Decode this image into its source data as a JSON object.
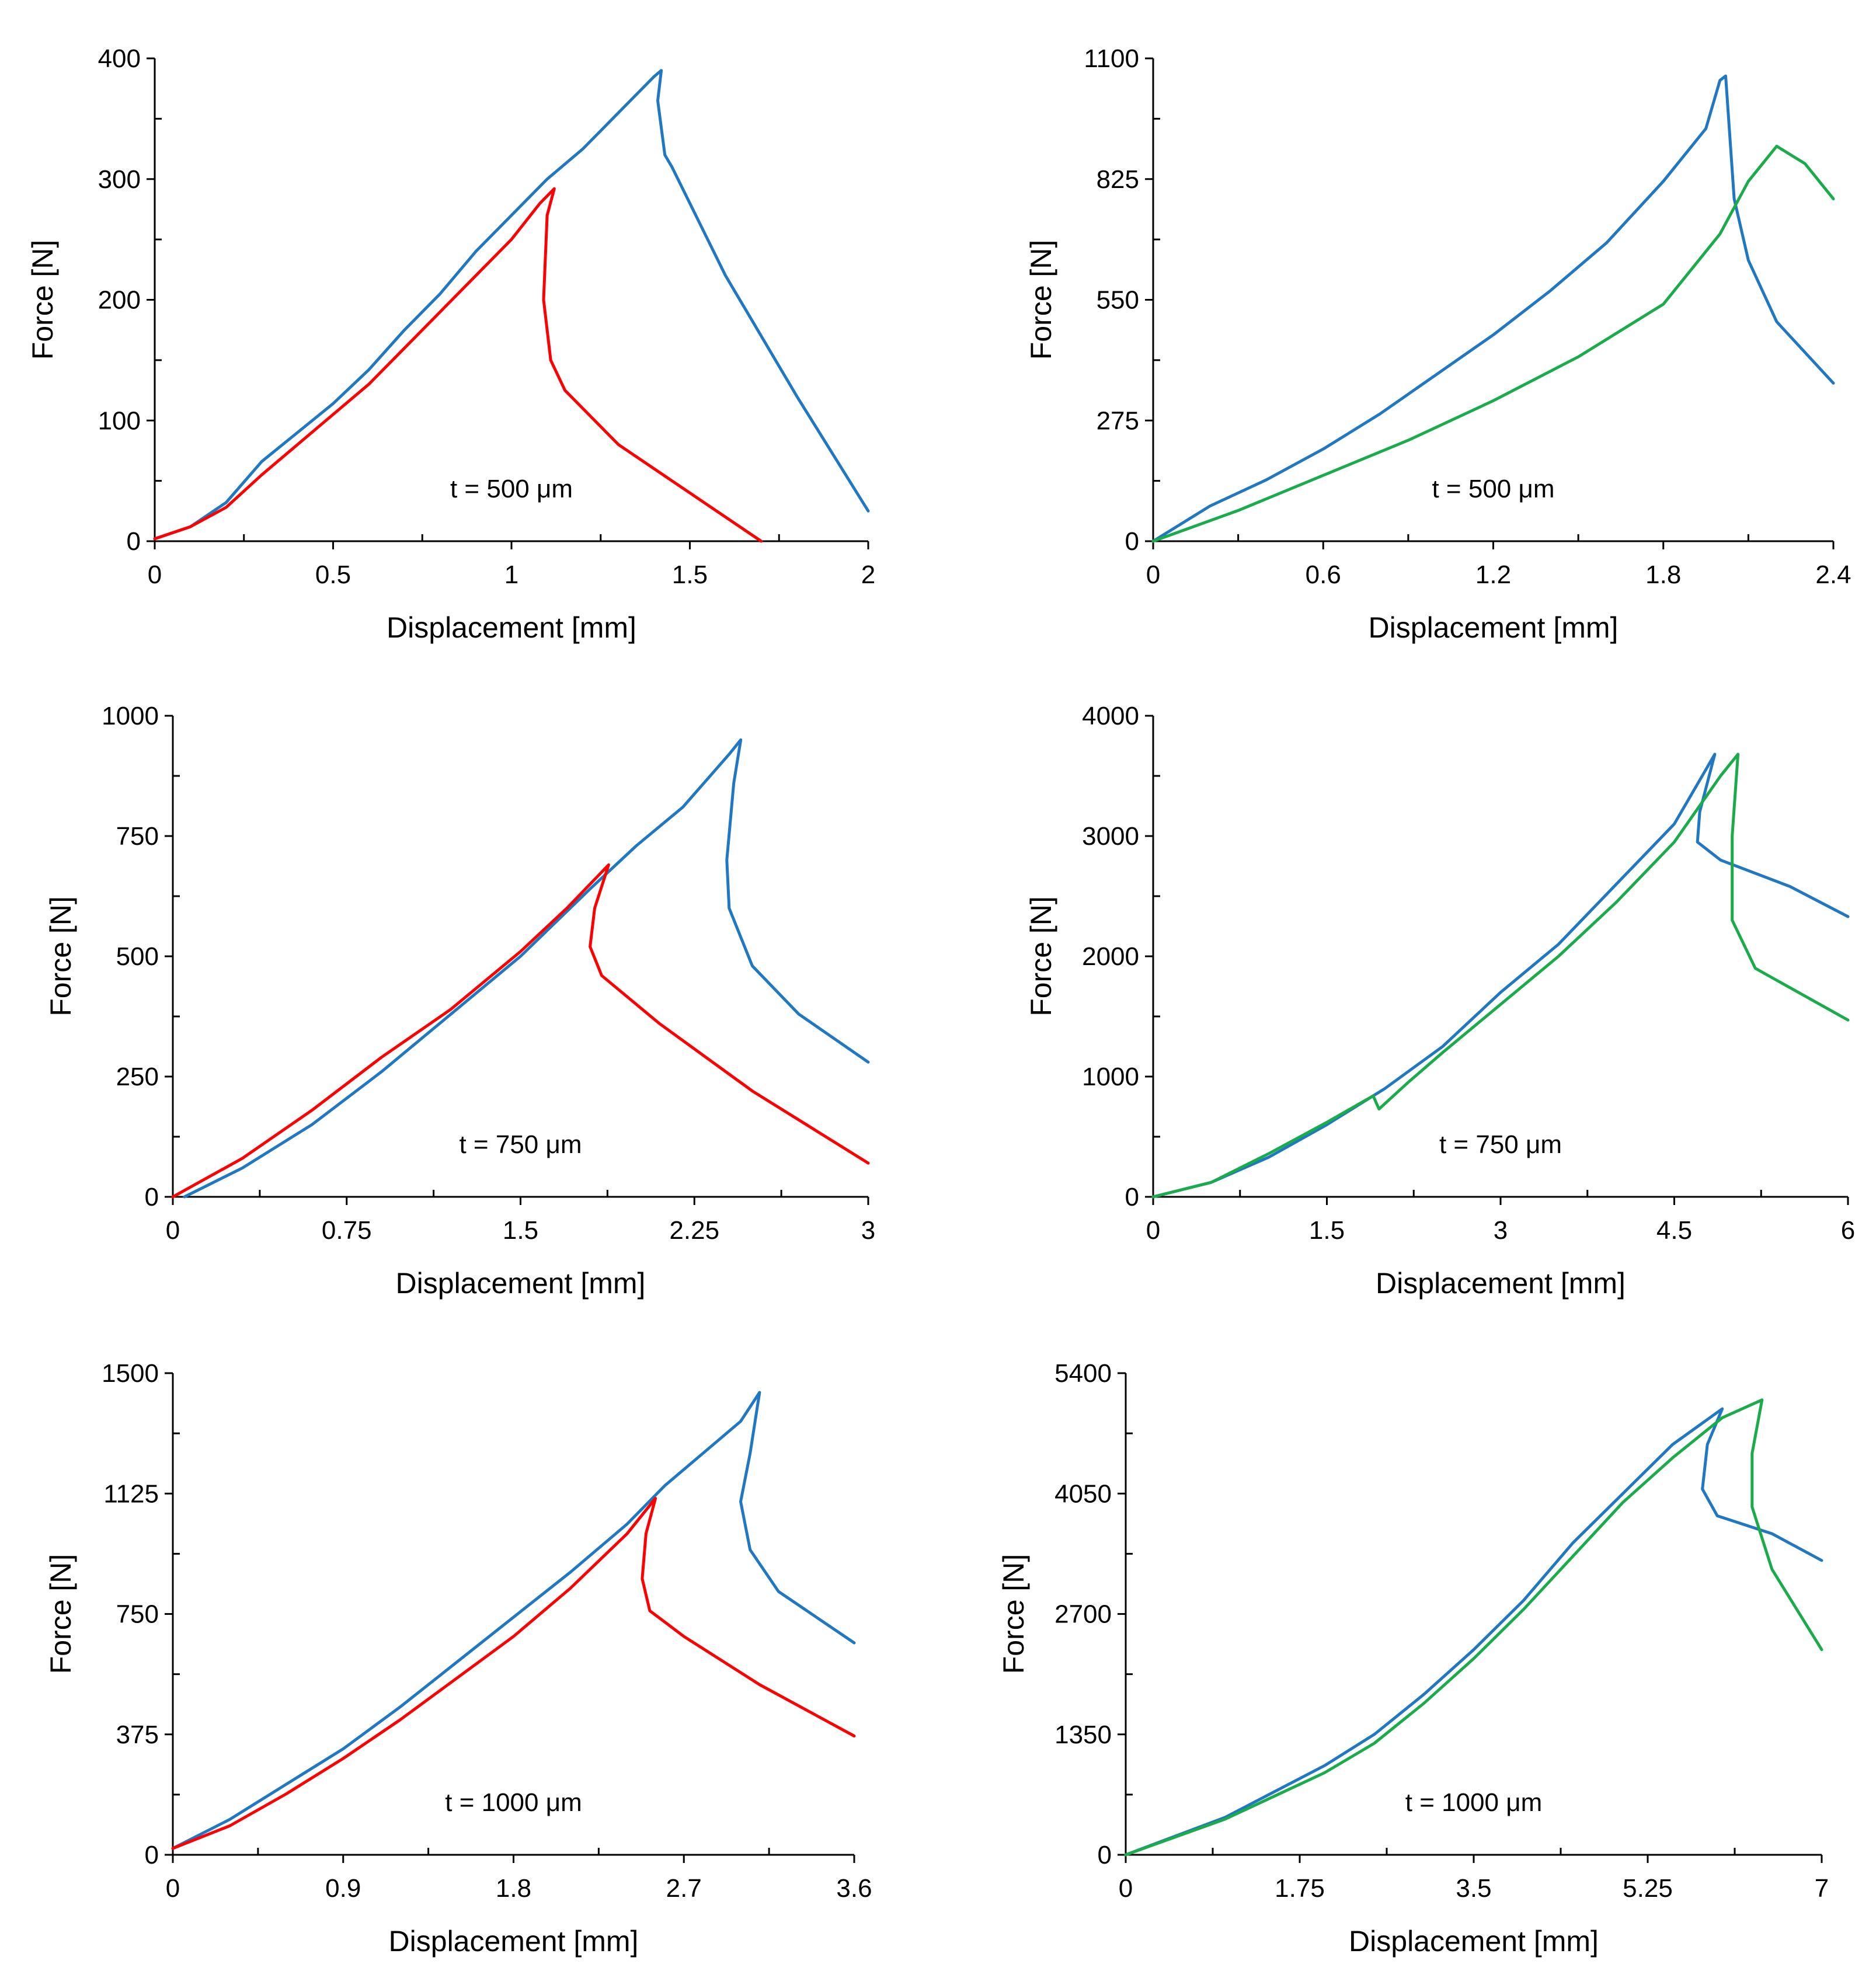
{
  "chart_data": [
    {
      "type": "line",
      "xlabel": "Displacement [mm]",
      "ylabel": "Force [N]",
      "annotation": "t = 500 μm",
      "xlim": [
        0,
        2
      ],
      "ylim": [
        0,
        400
      ],
      "xticks": [
        "0",
        "0.5",
        "1",
        "1.5",
        "2"
      ],
      "yticks": [
        "0",
        "100",
        "200",
        "300",
        "400"
      ],
      "series": [
        {
          "name": "blue",
          "color": "#1f78c1",
          "x": [
            0,
            0.1,
            0.2,
            0.3,
            0.4,
            0.5,
            0.6,
            0.7,
            0.8,
            0.9,
            1.0,
            1.1,
            1.2,
            1.3,
            1.35,
            1.4,
            1.42,
            1.41,
            1.43,
            1.45,
            1.6,
            1.8,
            2.0
          ],
          "y": [
            2,
            12,
            32,
            66,
            90,
            114,
            142,
            175,
            205,
            240,
            270,
            300,
            325,
            355,
            370,
            385,
            390,
            365,
            320,
            310,
            220,
            120,
            25
          ]
        },
        {
          "name": "red",
          "color": "#ff0000",
          "x": [
            0,
            0.1,
            0.2,
            0.3,
            0.4,
            0.5,
            0.6,
            0.7,
            0.8,
            0.9,
            1.0,
            1.08,
            1.12,
            1.1,
            1.09,
            1.11,
            1.15,
            1.3,
            1.5,
            1.7
          ],
          "y": [
            2,
            12,
            28,
            55,
            80,
            105,
            130,
            160,
            190,
            220,
            250,
            280,
            292,
            270,
            200,
            150,
            125,
            80,
            40,
            0
          ]
        }
      ]
    },
    {
      "type": "line",
      "xlabel": "Displacement [mm]",
      "ylabel": "Force [N]",
      "annotation": "t = 500 μm",
      "xlim": [
        0,
        2.4
      ],
      "ylim": [
        0,
        1100
      ],
      "xticks": [
        "0",
        "0.6",
        "1.2",
        "1.8",
        "2.4"
      ],
      "yticks": [
        "0",
        "275",
        "550",
        "825",
        "1100"
      ],
      "series": [
        {
          "name": "blue",
          "color": "#1f78c1",
          "x": [
            0,
            0.2,
            0.4,
            0.6,
            0.8,
            1.0,
            1.2,
            1.4,
            1.6,
            1.8,
            1.95,
            2.0,
            2.02,
            2.05,
            2.1,
            2.2,
            2.4
          ],
          "y": [
            0,
            80,
            140,
            210,
            290,
            380,
            470,
            570,
            680,
            820,
            940,
            1050,
            1060,
            780,
            640,
            500,
            360
          ]
        },
        {
          "name": "green",
          "color": "#1aac4a",
          "x": [
            0,
            0.3,
            0.6,
            0.9,
            1.2,
            1.5,
            1.8,
            2.0,
            2.1,
            2.2,
            2.3,
            2.4
          ],
          "y": [
            0,
            70,
            150,
            230,
            320,
            420,
            540,
            700,
            820,
            900,
            860,
            780
          ]
        }
      ]
    },
    {
      "type": "line",
      "xlabel": "Displacement [mm]",
      "ylabel": "Force [N]",
      "annotation": "t = 750 μm",
      "xlim": [
        0,
        3
      ],
      "ylim": [
        0,
        1000
      ],
      "xticks": [
        "0",
        "0.75",
        "1.5",
        "2.25",
        "3"
      ],
      "yticks": [
        "0",
        "250",
        "500",
        "750",
        "1000"
      ],
      "series": [
        {
          "name": "blue",
          "color": "#1f78c1",
          "x": [
            0.05,
            0.3,
            0.6,
            0.9,
            1.2,
            1.5,
            1.8,
            2.0,
            2.2,
            2.4,
            2.45,
            2.42,
            2.39,
            2.4,
            2.5,
            2.7,
            3.0
          ],
          "y": [
            0,
            60,
            150,
            260,
            380,
            500,
            640,
            730,
            810,
            920,
            950,
            860,
            700,
            600,
            480,
            380,
            280
          ]
        },
        {
          "name": "red",
          "color": "#ff0000",
          "x": [
            0,
            0.3,
            0.6,
            0.9,
            1.2,
            1.5,
            1.7,
            1.88,
            1.82,
            1.8,
            1.85,
            2.1,
            2.5,
            3.0
          ],
          "y": [
            0,
            80,
            180,
            290,
            390,
            510,
            600,
            690,
            600,
            520,
            460,
            360,
            220,
            70
          ]
        }
      ]
    },
    {
      "type": "line",
      "xlabel": "Displacement [mm]",
      "ylabel": "Force [N]",
      "annotation": "t = 750 μm",
      "xlim": [
        0,
        6
      ],
      "ylim": [
        0,
        4000
      ],
      "xticks": [
        "0",
        "1.5",
        "3",
        "4.5",
        "6"
      ],
      "yticks": [
        "0",
        "1000",
        "2000",
        "3000",
        "4000"
      ],
      "series": [
        {
          "name": "blue",
          "color": "#1f78c1",
          "x": [
            0,
            0.5,
            1.0,
            1.5,
            2.0,
            2.5,
            3.0,
            3.5,
            4.0,
            4.5,
            4.85,
            4.72,
            4.7,
            4.9,
            5.5,
            6.0
          ],
          "y": [
            0,
            120,
            330,
            600,
            900,
            1250,
            1700,
            2100,
            2600,
            3100,
            3680,
            3200,
            2950,
            2800,
            2580,
            2330
          ]
        },
        {
          "name": "green",
          "color": "#1aac4a",
          "x": [
            0,
            0.5,
            1.0,
            1.5,
            1.9,
            1.95,
            2.2,
            2.5,
            3.0,
            3.5,
            4.0,
            4.5,
            4.9,
            5.05,
            5.0,
            5.0,
            5.2,
            6.0
          ],
          "y": [
            0,
            120,
            360,
            620,
            840,
            730,
            950,
            1200,
            1600,
            2000,
            2450,
            2950,
            3500,
            3680,
            3000,
            2300,
            1900,
            1470
          ]
        }
      ]
    },
    {
      "type": "line",
      "xlabel": "Displacement [mm]",
      "ylabel": "Force [N]",
      "annotation": "t = 1000 μm",
      "xlim": [
        0,
        3.6
      ],
      "ylim": [
        0,
        1500
      ],
      "xticks": [
        "0",
        "0.9",
        "1.8",
        "2.7",
        "3.6"
      ],
      "yticks": [
        "0",
        "375",
        "750",
        "1125",
        "1500"
      ],
      "series": [
        {
          "name": "blue",
          "color": "#1f78c1",
          "x": [
            0,
            0.3,
            0.6,
            0.9,
            1.2,
            1.5,
            1.8,
            2.1,
            2.4,
            2.6,
            2.8,
            3.0,
            3.1,
            3.05,
            3.0,
            3.05,
            3.2,
            3.6
          ],
          "y": [
            20,
            110,
            220,
            330,
            460,
            600,
            740,
            880,
            1030,
            1150,
            1250,
            1350,
            1440,
            1250,
            1100,
            950,
            820,
            660
          ]
        },
        {
          "name": "red",
          "color": "#ff0000",
          "x": [
            0,
            0.3,
            0.6,
            0.9,
            1.2,
            1.5,
            1.8,
            2.1,
            2.4,
            2.55,
            2.5,
            2.48,
            2.52,
            2.7,
            3.1,
            3.6
          ],
          "y": [
            20,
            90,
            190,
            300,
            420,
            550,
            680,
            830,
            1000,
            1110,
            1000,
            860,
            760,
            680,
            530,
            370
          ]
        }
      ]
    },
    {
      "type": "line",
      "xlabel": "Displacement [mm]",
      "ylabel": "Force [N]",
      "annotation": "t = 1000 μm",
      "xlim": [
        0,
        7
      ],
      "ylim": [
        0,
        5400
      ],
      "xticks": [
        "0",
        "1.75",
        "3.5",
        "5.25",
        "7"
      ],
      "yticks": [
        "0",
        "1350",
        "2700",
        "4050",
        "5400"
      ],
      "series": [
        {
          "name": "blue",
          "color": "#1f78c1",
          "x": [
            0,
            1.0,
            2.0,
            2.5,
            3.0,
            3.5,
            4.0,
            4.5,
            5.0,
            5.5,
            6.0,
            5.85,
            5.8,
            5.95,
            6.5,
            7.0
          ],
          "y": [
            0,
            420,
            1000,
            1350,
            1800,
            2300,
            2850,
            3500,
            4050,
            4600,
            5000,
            4600,
            4100,
            3800,
            3600,
            3300
          ]
        },
        {
          "name": "green",
          "color": "#1aac4a",
          "x": [
            0,
            1.0,
            2.0,
            2.5,
            3.0,
            3.5,
            4.0,
            4.5,
            5.0,
            5.5,
            6.0,
            6.4,
            6.3,
            6.3,
            6.5,
            7.0
          ],
          "y": [
            0,
            400,
            920,
            1250,
            1700,
            2200,
            2750,
            3350,
            3950,
            4450,
            4900,
            5100,
            4500,
            3900,
            3200,
            2300
          ]
        }
      ]
    }
  ]
}
